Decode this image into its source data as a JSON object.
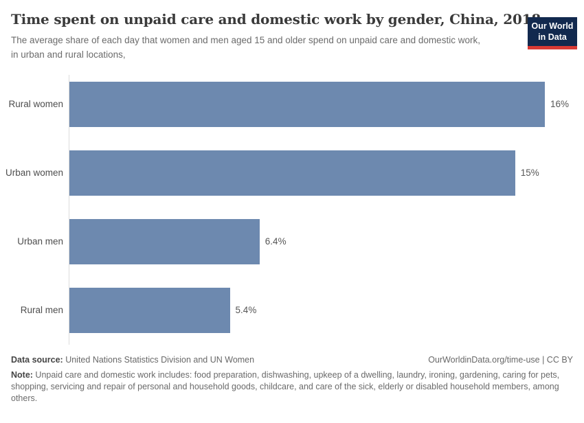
{
  "header": {
    "title": "Time spent on unpaid care and domestic work by gender, China, 2018",
    "subtitle": "The average share of each day that women and men aged 15 and older spend on unpaid care and domestic work, in urban and rural locations,",
    "logo": {
      "line1": "Our World",
      "line2": "in Data"
    }
  },
  "chart_data": {
    "type": "bar",
    "orientation": "horizontal",
    "title": "Time spent on unpaid care and domestic work by gender, China, 2018",
    "subtitle": "The average share of each day that women and men aged 15 and older spend on unpaid care and domestic work, in urban and rural locations,",
    "categories": [
      "Rural women",
      "Urban women",
      "Urban men",
      "Rural men"
    ],
    "values": [
      16,
      15,
      6.4,
      5.4
    ],
    "value_labels": [
      "16%",
      "15%",
      "6.4%",
      "5.4%"
    ],
    "unit": "%",
    "xlabel": "",
    "ylabel": "",
    "axis_max": 16,
    "grid": false,
    "legend": "none",
    "bar_color": "#6d89af"
  },
  "footer": {
    "data_source_label": "Data source:",
    "data_source_text": " United Nations Statistics Division and UN Women",
    "attribution": "OurWorldinData.org/time-use | CC BY",
    "note_label": "Note:",
    "note_text": " Unpaid care and domestic work includes: food preparation, dishwashing, upkeep of a dwelling, laundry, ironing, gardening, caring for pets, shopping, servicing and repair of personal and household goods, childcare, and care of the sick, elderly or disabled household members, among others."
  },
  "colors": {
    "bar": "#6d89af",
    "logo_bg": "#12294e",
    "logo_accent": "#d93a34",
    "axis_line": "#dcdcdc"
  }
}
